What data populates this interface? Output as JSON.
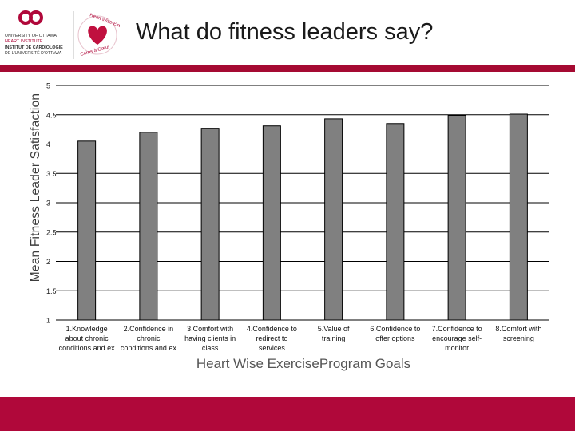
{
  "title": "What do fitness leaders say?",
  "logo": {
    "institute_lines": [
      "UNIVERSITY OF OTTAWA",
      "HEART INSTITUTE",
      "INSTITUT DE CARDIOLOGIE",
      "DE L'UNIVERSITÉ D'OTTAWA"
    ],
    "program_arc": "Heart Wise Exercise",
    "program_arc_fr": "Corps à Cœur"
  },
  "colors": {
    "accent": "#a50a32",
    "bar_fill": "#808080",
    "bar_stroke": "#000000",
    "grid": "#000000"
  },
  "chart_data": {
    "type": "bar",
    "title": "What do fitness leaders say?",
    "xlabel": "Heart Wise ExerciseProgram Goals",
    "ylabel": "Mean Fitness Leader Satisfaction",
    "ylim": [
      1,
      5
    ],
    "yticks": [
      "1",
      "1.5",
      "2",
      "2.5",
      "3",
      "3.5",
      "4",
      "4.5",
      "5"
    ],
    "grid": true,
    "categories": [
      [
        "1.Knowledge",
        "about chronic",
        "conditions and ex"
      ],
      [
        "2.Confidence in",
        "chronic",
        "conditions and ex"
      ],
      [
        "3.Comfort with",
        "having clients in",
        "class"
      ],
      [
        "4.Confidence to",
        "redirect to",
        "services"
      ],
      [
        "5.Value of",
        "training"
      ],
      [
        "6.Confidence to",
        "offer options"
      ],
      [
        "7.Confidence to",
        "encourage self-",
        "monitor"
      ],
      [
        "8.Comfort with",
        "screening"
      ]
    ],
    "values": [
      4.05,
      4.2,
      4.27,
      4.31,
      4.43,
      4.35,
      4.49,
      4.51
    ]
  }
}
